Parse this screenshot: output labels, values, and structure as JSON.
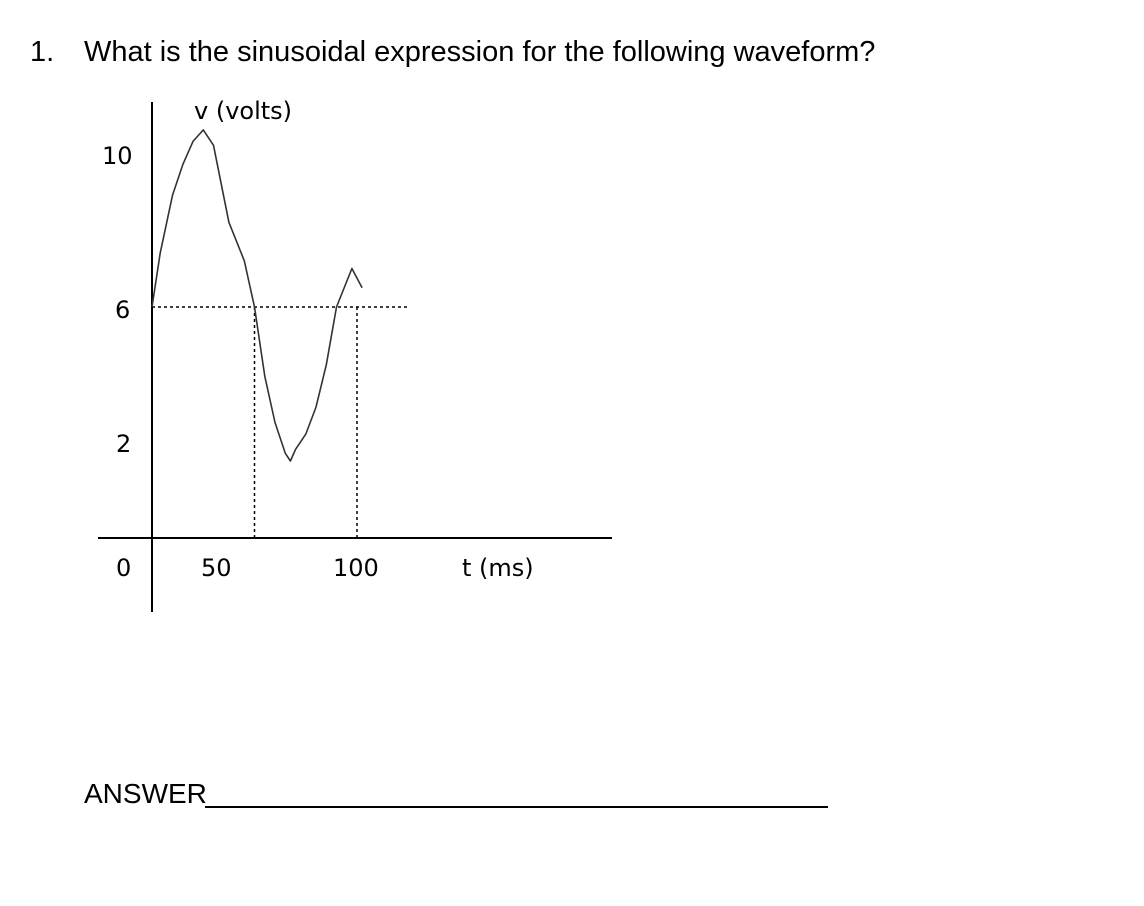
{
  "question": {
    "number": "1.",
    "text": "What is the sinusoidal expression for the following waveform?"
  },
  "chart_data": {
    "type": "line",
    "ylabel": "v (volts)",
    "xlabel": "t (ms)",
    "y_ticks": [
      "10",
      "6",
      "2",
      "0"
    ],
    "x_ticks": [
      "50",
      "100"
    ],
    "xlim": [
      0,
      220
    ],
    "ylim": [
      -3,
      11
    ],
    "series": [
      {
        "x": [
          0,
          4,
          10,
          15,
          20,
          25,
          30,
          37.5,
          45,
          50,
          55,
          60,
          65,
          67.5,
          70,
          75,
          80,
          85,
          90,
          97.5,
          102.5
        ],
        "values": [
          6,
          7.4,
          8.9,
          9.7,
          10.3,
          10.6,
          10.2,
          8.2,
          7.2,
          6,
          4.2,
          3.0,
          2.2,
          2.0,
          2.3,
          2.7,
          3.4,
          4.5,
          6,
          7.0,
          6.5
        ],
        "color": "#333333"
      }
    ],
    "reference_lines": {
      "horizontal_y": 6,
      "horizontal_x_range": [
        0,
        125
      ],
      "vertical_x": [
        50,
        100
      ]
    },
    "grid": false
  },
  "answer": {
    "label": "ANSWER"
  }
}
